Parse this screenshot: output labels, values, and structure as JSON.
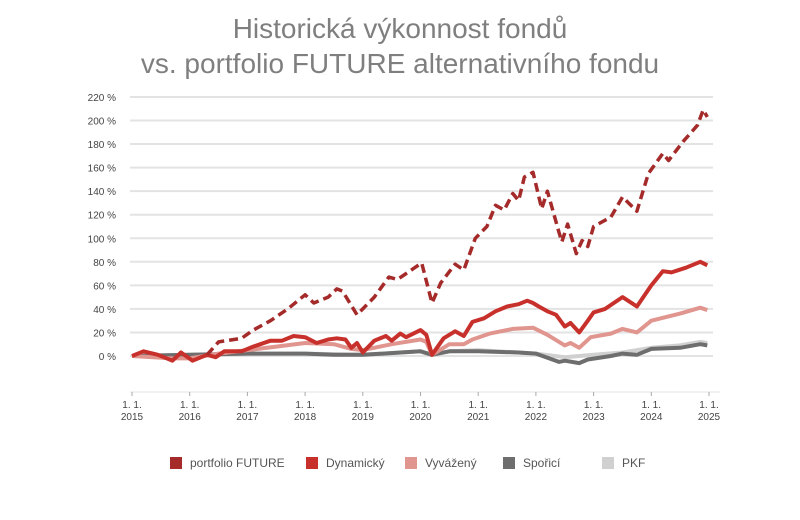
{
  "chart_data": {
    "type": "line",
    "title": "Historická výkonnost fondů",
    "subtitle": "vs. portfolio FUTURE alternativního fondu",
    "xlabel": "",
    "ylabel": "",
    "ylim": [
      -20,
      220
    ],
    "yticks": [
      0,
      20,
      40,
      60,
      80,
      100,
      120,
      140,
      160,
      180,
      200,
      220
    ],
    "ytick_labels": [
      "0 %",
      "20 %",
      "40 %",
      "60 %",
      "80 %",
      "100 %",
      "120 %",
      "140 %",
      "160 %",
      "180 %",
      "200 %",
      "220 %"
    ],
    "xlim": [
      2015,
      2025
    ],
    "xticks": [
      {
        "top": "1. 1.",
        "bottom": "2015"
      },
      {
        "top": "1. 1.",
        "bottom": "2016"
      },
      {
        "top": "1. 1.",
        "bottom": "2017"
      },
      {
        "top": "1. 1.",
        "bottom": "2018"
      },
      {
        "top": "1. 1.",
        "bottom": "2019"
      },
      {
        "top": "1. 1.",
        "bottom": "2020"
      },
      {
        "top": "1. 1.",
        "bottom": "2021"
      },
      {
        "top": "1. 1.",
        "bottom": "2022"
      },
      {
        "top": "1. 1.",
        "bottom": "2023"
      },
      {
        "top": "1. 1.",
        "bottom": "2024"
      },
      {
        "top": "1. 1.",
        "bottom": "2025"
      }
    ],
    "grid": true,
    "legend_position": "bottom",
    "series": [
      {
        "name": "PKF",
        "color": "#d0d0d0",
        "dashed": false,
        "x": [
          2015,
          2016,
          2017,
          2018,
          2019,
          2020,
          2020.2,
          2020.5,
          2021,
          2022,
          2022.5,
          2023,
          2023.5,
          2024,
          2024.5,
          2024.85,
          2024.97
        ],
        "y": [
          0,
          1,
          2,
          2,
          1,
          4,
          1,
          4,
          5,
          2,
          -1,
          1,
          3,
          7,
          9,
          12,
          11
        ]
      },
      {
        "name": "Spořicí",
        "color": "#6e6e6e",
        "dashed": false,
        "x": [
          2015,
          2016,
          2017,
          2018,
          2018.5,
          2019,
          2020,
          2020.2,
          2020.5,
          2021,
          2021.7,
          2022,
          2022.4,
          2022.5,
          2022.75,
          2022.9,
          2023.3,
          2023.5,
          2023.75,
          2024,
          2024.5,
          2024.85,
          2024.97
        ],
        "y": [
          0,
          1,
          2,
          2,
          1,
          1,
          4,
          1,
          4,
          4,
          3,
          2,
          -5,
          -4,
          -6,
          -3,
          0,
          2,
          1,
          6,
          7,
          10,
          9
        ]
      },
      {
        "name": "Vyvážený",
        "color": "#e0958f",
        "dashed": false,
        "x": [
          2015,
          2015.7,
          2016,
          2016.5,
          2017,
          2017.5,
          2018,
          2018.5,
          2018.8,
          2019,
          2019.5,
          2020,
          2020.1,
          2020.2,
          2020.5,
          2020.75,
          2020.9,
          2021.2,
          2021.6,
          2021.95,
          2022.2,
          2022.5,
          2022.6,
          2022.75,
          2022.95,
          2023.3,
          2023.5,
          2023.75,
          2024,
          2024.5,
          2024.85,
          2024.97
        ],
        "y": [
          0,
          -2,
          -2,
          2,
          5,
          8,
          11,
          10,
          6,
          5,
          10,
          14,
          12,
          1,
          10,
          10,
          14,
          19,
          23,
          24,
          18,
          9,
          11,
          7,
          16,
          19,
          23,
          20,
          30,
          36,
          41,
          39
        ]
      },
      {
        "name": "Dynamický",
        "color": "#c8302c",
        "dashed": false,
        "x": [
          2015,
          2015.2,
          2015.45,
          2015.7,
          2015.85,
          2016.05,
          2016.3,
          2016.45,
          2016.6,
          2016.9,
          2017.1,
          2017.4,
          2017.6,
          2017.8,
          2018,
          2018.2,
          2018.4,
          2018.55,
          2018.7,
          2018.8,
          2018.9,
          2019,
          2019.2,
          2019.4,
          2019.5,
          2019.65,
          2019.75,
          2020,
          2020.1,
          2020.2,
          2020.4,
          2020.6,
          2020.75,
          2020.9,
          2021.1,
          2021.3,
          2021.5,
          2021.7,
          2021.85,
          2021.95,
          2022.05,
          2022.2,
          2022.35,
          2022.5,
          2022.6,
          2022.75,
          2022.9,
          2023,
          2023.2,
          2023.5,
          2023.75,
          2024,
          2024.2,
          2024.35,
          2024.6,
          2024.85,
          2024.97
        ],
        "y": [
          0,
          4,
          1,
          -4,
          3,
          -4,
          1,
          -1,
          4,
          4,
          8,
          13,
          13,
          17,
          16,
          11,
          14,
          15,
          14,
          7,
          11,
          3,
          13,
          17,
          13,
          19,
          16,
          22,
          18,
          1,
          15,
          21,
          17,
          29,
          32,
          38,
          42,
          44,
          47,
          45,
          42,
          38,
          35,
          25,
          28,
          20,
          30,
          37,
          40,
          50,
          42,
          60,
          72,
          71,
          75,
          80,
          77
        ]
      },
      {
        "name": "portfolio FUTURE",
        "color": "#a52a2a",
        "dashed": true,
        "x": [
          2016.3,
          2016.5,
          2016.9,
          2017.1,
          2017.4,
          2017.7,
          2018,
          2018.15,
          2018.4,
          2018.55,
          2018.65,
          2018.9,
          2019.2,
          2019.45,
          2019.6,
          2019.9,
          2020.02,
          2020.2,
          2020.35,
          2020.6,
          2020.75,
          2020.95,
          2021.15,
          2021.3,
          2021.45,
          2021.6,
          2021.7,
          2021.8,
          2021.95,
          2022.1,
          2022.2,
          2022.4,
          2022.45,
          2022.55,
          2022.7,
          2022.8,
          2022.9,
          2023,
          2023.3,
          2023.5,
          2023.75,
          2023.95,
          2024.2,
          2024.3,
          2024.55,
          2024.8,
          2024.9,
          2024.97
        ],
        "y": [
          1,
          12,
          15,
          22,
          30,
          40,
          52,
          45,
          50,
          57,
          55,
          35,
          50,
          67,
          65,
          75,
          79,
          45,
          62,
          78,
          73,
          100,
          110,
          128,
          124,
          138,
          132,
          152,
          156,
          125,
          140,
          105,
          97,
          112,
          87,
          98,
          93,
          110,
          118,
          135,
          123,
          155,
          172,
          166,
          182,
          196,
          209,
          203
        ]
      }
    ]
  }
}
